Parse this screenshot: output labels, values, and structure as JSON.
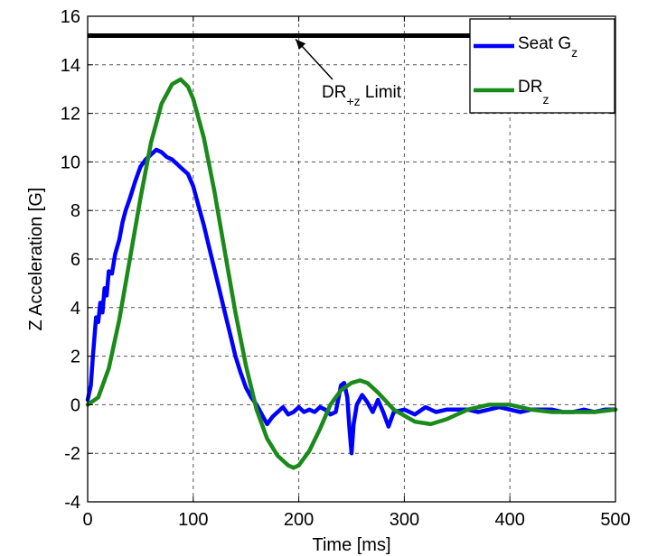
{
  "chart_data": {
    "type": "line",
    "title": "",
    "xlabel": "Time [ms]",
    "ylabel": "Z Acceleration [G]",
    "xlim": [
      0,
      500
    ],
    "ylim": [
      -4,
      16
    ],
    "xticks": [
      0,
      100,
      200,
      300,
      400,
      500
    ],
    "yticks": [
      -4,
      -2,
      0,
      2,
      4,
      6,
      8,
      10,
      12,
      14,
      16
    ],
    "grid": true,
    "legend_position": "top-right",
    "series": [
      {
        "name": "Seat G",
        "name_sub": "z",
        "color": "#0000ff",
        "x": [
          0,
          3,
          5,
          8,
          10,
          12,
          14,
          16,
          18,
          20,
          23,
          26,
          30,
          33,
          36,
          40,
          45,
          50,
          55,
          60,
          65,
          70,
          75,
          80,
          85,
          90,
          95,
          100,
          105,
          110,
          115,
          120,
          125,
          130,
          135,
          140,
          145,
          150,
          155,
          160,
          165,
          170,
          175,
          180,
          185,
          190,
          195,
          200,
          205,
          210,
          215,
          220,
          225,
          230,
          235,
          240,
          243,
          246,
          248,
          250,
          252,
          255,
          260,
          265,
          270,
          275,
          280,
          285,
          290,
          300,
          310,
          320,
          330,
          340,
          350,
          360,
          370,
          380,
          390,
          400,
          410,
          420,
          430,
          440,
          450,
          460,
          470,
          480,
          490,
          500
        ],
        "y": [
          0.2,
          0.8,
          2.0,
          3.6,
          3.4,
          4.2,
          3.8,
          4.8,
          4.5,
          5.5,
          5.4,
          6.2,
          6.8,
          7.5,
          8.0,
          8.5,
          9.2,
          9.8,
          10.1,
          10.3,
          10.5,
          10.4,
          10.2,
          10.1,
          9.9,
          9.7,
          9.5,
          9.0,
          8.2,
          7.4,
          6.5,
          5.6,
          4.7,
          3.8,
          2.9,
          2.0,
          1.3,
          0.7,
          0.3,
          0.0,
          -0.4,
          -0.8,
          -0.5,
          -0.3,
          -0.1,
          -0.4,
          -0.3,
          -0.1,
          -0.3,
          -0.2,
          -0.3,
          -0.1,
          -0.2,
          -0.4,
          -0.3,
          0.8,
          0.9,
          0.3,
          -1.0,
          -2.0,
          -0.8,
          0.0,
          0.4,
          0.1,
          -0.3,
          0.2,
          -0.3,
          -0.9,
          -0.3,
          -0.2,
          -0.4,
          -0.1,
          -0.3,
          -0.2,
          -0.2,
          -0.2,
          -0.3,
          -0.2,
          -0.1,
          -0.2,
          -0.3,
          -0.2,
          -0.2,
          -0.2,
          -0.3,
          -0.3,
          -0.2,
          -0.3,
          -0.2,
          -0.2
        ]
      },
      {
        "name": "DR",
        "name_sub": "z",
        "color": "#1a8a1a",
        "x": [
          0,
          10,
          20,
          30,
          40,
          50,
          60,
          70,
          80,
          88,
          95,
          100,
          110,
          120,
          130,
          140,
          150,
          160,
          170,
          180,
          190,
          195,
          200,
          210,
          220,
          230,
          240,
          250,
          258,
          265,
          275,
          290,
          310,
          325,
          340,
          360,
          380,
          400,
          420,
          440,
          460,
          480,
          500
        ],
        "y": [
          0.0,
          0.3,
          1.5,
          3.5,
          6.0,
          8.5,
          10.8,
          12.4,
          13.2,
          13.4,
          13.1,
          12.6,
          11.0,
          8.8,
          6.3,
          3.8,
          1.6,
          -0.2,
          -1.4,
          -2.1,
          -2.5,
          -2.6,
          -2.5,
          -1.9,
          -1.0,
          0.0,
          0.6,
          0.9,
          1.0,
          0.9,
          0.5,
          -0.2,
          -0.7,
          -0.8,
          -0.6,
          -0.2,
          0.0,
          0.0,
          -0.2,
          -0.3,
          -0.3,
          -0.3,
          -0.2
        ]
      }
    ],
    "reference_line": {
      "y": 15.2,
      "color": "#000000"
    },
    "annotation": {
      "text": "DR",
      "sub": "+z",
      "suffix": " Limit",
      "arrow_to": [
        197,
        15.2
      ]
    }
  }
}
